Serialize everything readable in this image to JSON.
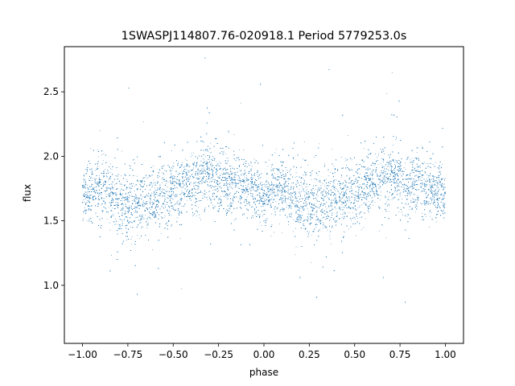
{
  "chart_data": {
    "type": "scatter",
    "title": "1SWASPJ114807.76-020918.1 Period 5779253.0s",
    "xlabel": "phase",
    "ylabel": "flux",
    "xlim": [
      -1.1,
      1.1
    ],
    "ylim": [
      0.55,
      2.85
    ],
    "xticks": [
      -1.0,
      -0.75,
      -0.5,
      -0.25,
      0.0,
      0.25,
      0.5,
      0.75,
      1.0
    ],
    "xtick_labels": [
      "−1.00",
      "−0.75",
      "−0.50",
      "−0.25",
      "0.00",
      "0.25",
      "0.50",
      "0.75",
      "1.00"
    ],
    "yticks": [
      1.0,
      1.5,
      2.0,
      2.5
    ],
    "ytick_labels": [
      "1.0",
      "1.5",
      "2.0",
      "2.5"
    ],
    "grid": false,
    "marker_color": "#1f77b4",
    "phase_range": [
      -1.0,
      1.0
    ],
    "series": [
      {
        "phase_profile": [
          {
            "phase": -1.0,
            "median_flux": 1.7,
            "spread": 0.1
          },
          {
            "phase": -0.9,
            "median_flux": 1.75,
            "spread": 0.11
          },
          {
            "phase": -0.78,
            "median_flux": 1.62,
            "spread": 0.14
          },
          {
            "phase": -0.7,
            "median_flux": 1.63,
            "spread": 0.13
          },
          {
            "phase": -0.6,
            "median_flux": 1.68,
            "spread": 0.12
          },
          {
            "phase": -0.5,
            "median_flux": 1.72,
            "spread": 0.12
          },
          {
            "phase": -0.4,
            "median_flux": 1.8,
            "spread": 0.12
          },
          {
            "phase": -0.32,
            "median_flux": 1.85,
            "spread": 0.13
          },
          {
            "phase": -0.22,
            "median_flux": 1.8,
            "spread": 0.12
          },
          {
            "phase": -0.1,
            "median_flux": 1.76,
            "spread": 0.11
          },
          {
            "phase": 0.0,
            "median_flux": 1.7,
            "spread": 0.1
          },
          {
            "phase": 0.1,
            "median_flux": 1.75,
            "spread": 0.11
          },
          {
            "phase": 0.22,
            "median_flux": 1.62,
            "spread": 0.14
          },
          {
            "phase": 0.3,
            "median_flux": 1.63,
            "spread": 0.13
          },
          {
            "phase": 0.4,
            "median_flux": 1.68,
            "spread": 0.12
          },
          {
            "phase": 0.5,
            "median_flux": 1.72,
            "spread": 0.12
          },
          {
            "phase": 0.6,
            "median_flux": 1.8,
            "spread": 0.12
          },
          {
            "phase": 0.68,
            "median_flux": 1.85,
            "spread": 0.13
          },
          {
            "phase": 0.78,
            "median_flux": 1.8,
            "spread": 0.12
          },
          {
            "phase": 0.9,
            "median_flux": 1.76,
            "spread": 0.11
          },
          {
            "phase": 1.0,
            "median_flux": 1.7,
            "spread": 0.1
          }
        ]
      }
    ]
  }
}
